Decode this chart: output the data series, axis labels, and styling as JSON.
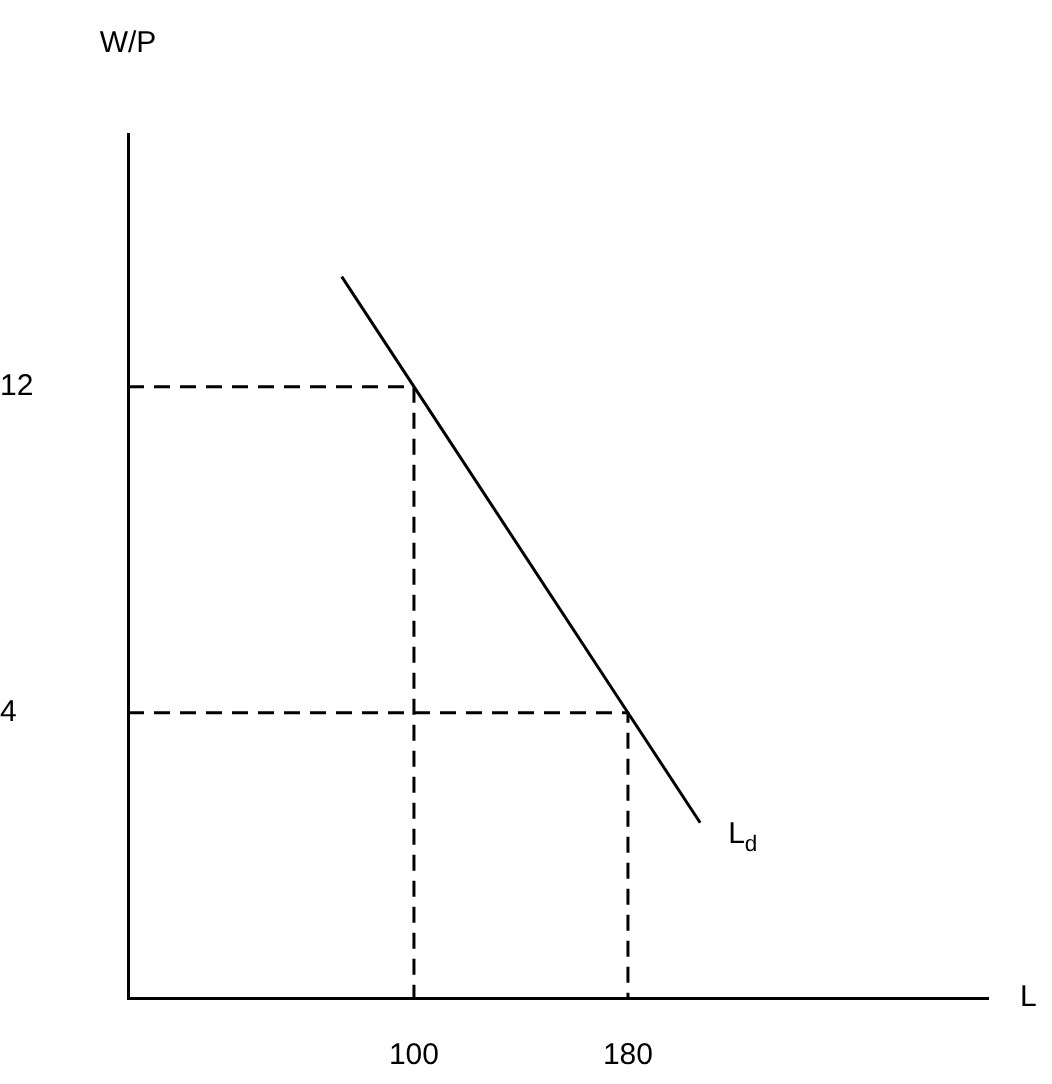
{
  "chart_data": {
    "type": "line",
    "xlabel": "L",
    "ylabel": "W/P",
    "xlim": [
      -6.9,
      314.6
    ],
    "ylim": [
      -3,
      18.2
    ],
    "xticks": [
      100,
      180
    ],
    "yticks": [
      12,
      4
    ],
    "legend": false,
    "grid": false,
    "marker": "none",
    "series": [
      {
        "name": "L$_{d}$",
        "color": "#000000",
        "x": [
          73,
          100,
          180,
          207
        ],
        "values": [
          14.7,
          12,
          4,
          1.3
        ]
      },
      {
        "color": "#000000",
        "line_style": "dashed",
        "x": [
          -6.9,
          100,
          100
        ],
        "values": [
          12,
          12,
          -3
        ]
      },
      {
        "color": "#000000",
        "line_style": "dashed",
        "x": [
          -6.9,
          180,
          180
        ],
        "values": [
          4,
          4,
          -3
        ]
      }
    ]
  }
}
